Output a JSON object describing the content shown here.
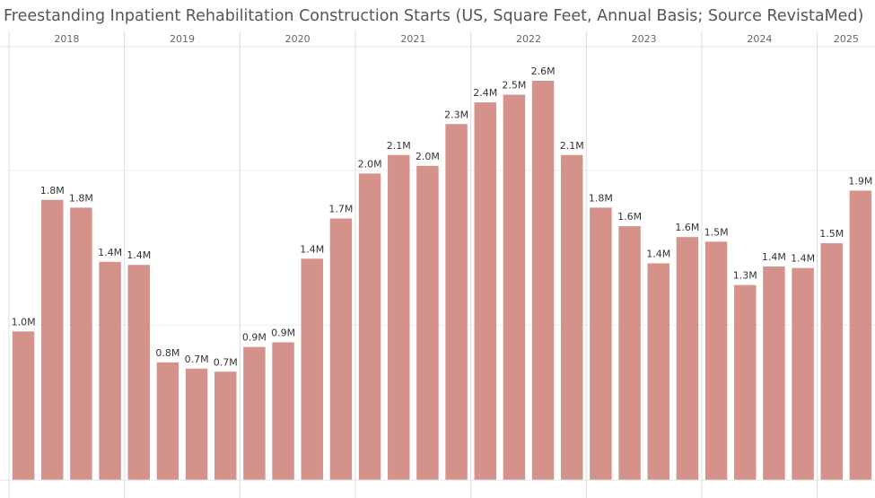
{
  "chart_data": {
    "type": "bar",
    "title": "Freestanding Inpatient Rehabilitation Construction Starts (US, Square Feet, Annual Basis; Source RevistaMed)",
    "groups": [
      {
        "label": "2018",
        "size": 4
      },
      {
        "label": "2019",
        "size": 4
      },
      {
        "label": "2020",
        "size": 4
      },
      {
        "label": "2021",
        "size": 4
      },
      {
        "label": "2022",
        "size": 4
      },
      {
        "label": "2023",
        "size": 4
      },
      {
        "label": "2024",
        "size": 4
      },
      {
        "label": "2025",
        "size": 2
      }
    ],
    "categories": [
      null,
      null,
      null,
      null,
      null,
      null,
      null,
      null,
      null,
      null,
      null,
      null,
      null,
      null,
      null,
      null,
      null,
      null,
      null,
      null,
      null,
      null,
      null,
      null,
      null,
      null,
      null,
      null,
      null,
      null
    ],
    "values": [
      0.96,
      1.81,
      1.76,
      1.41,
      1.39,
      0.76,
      0.72,
      0.7,
      0.86,
      0.89,
      1.43,
      1.69,
      1.98,
      2.1,
      2.03,
      2.3,
      2.44,
      2.49,
      2.58,
      2.1,
      1.76,
      1.64,
      1.4,
      1.57,
      1.54,
      1.26,
      1.38,
      1.37,
      1.53,
      1.87
    ],
    "value_labels": [
      "1.0M",
      "1.8M",
      "1.8M",
      "1.4M",
      "1.4M",
      "0.8M",
      "0.7M",
      "0.7M",
      "0.9M",
      "0.9M",
      "1.4M",
      "1.7M",
      "2.0M",
      "2.1M",
      "2.0M",
      "2.3M",
      "2.4M",
      "2.5M",
      "2.6M",
      "2.1M",
      "1.8M",
      "1.6M",
      "1.4M",
      "1.6M",
      "1.5M",
      "1.3M",
      "1.4M",
      "1.4M",
      "1.5M",
      "1.9M"
    ],
    "color": "#d4928a",
    "ylim": [
      0,
      2.8
    ],
    "yticks": [
      0,
      1,
      2
    ],
    "grid": true
  }
}
